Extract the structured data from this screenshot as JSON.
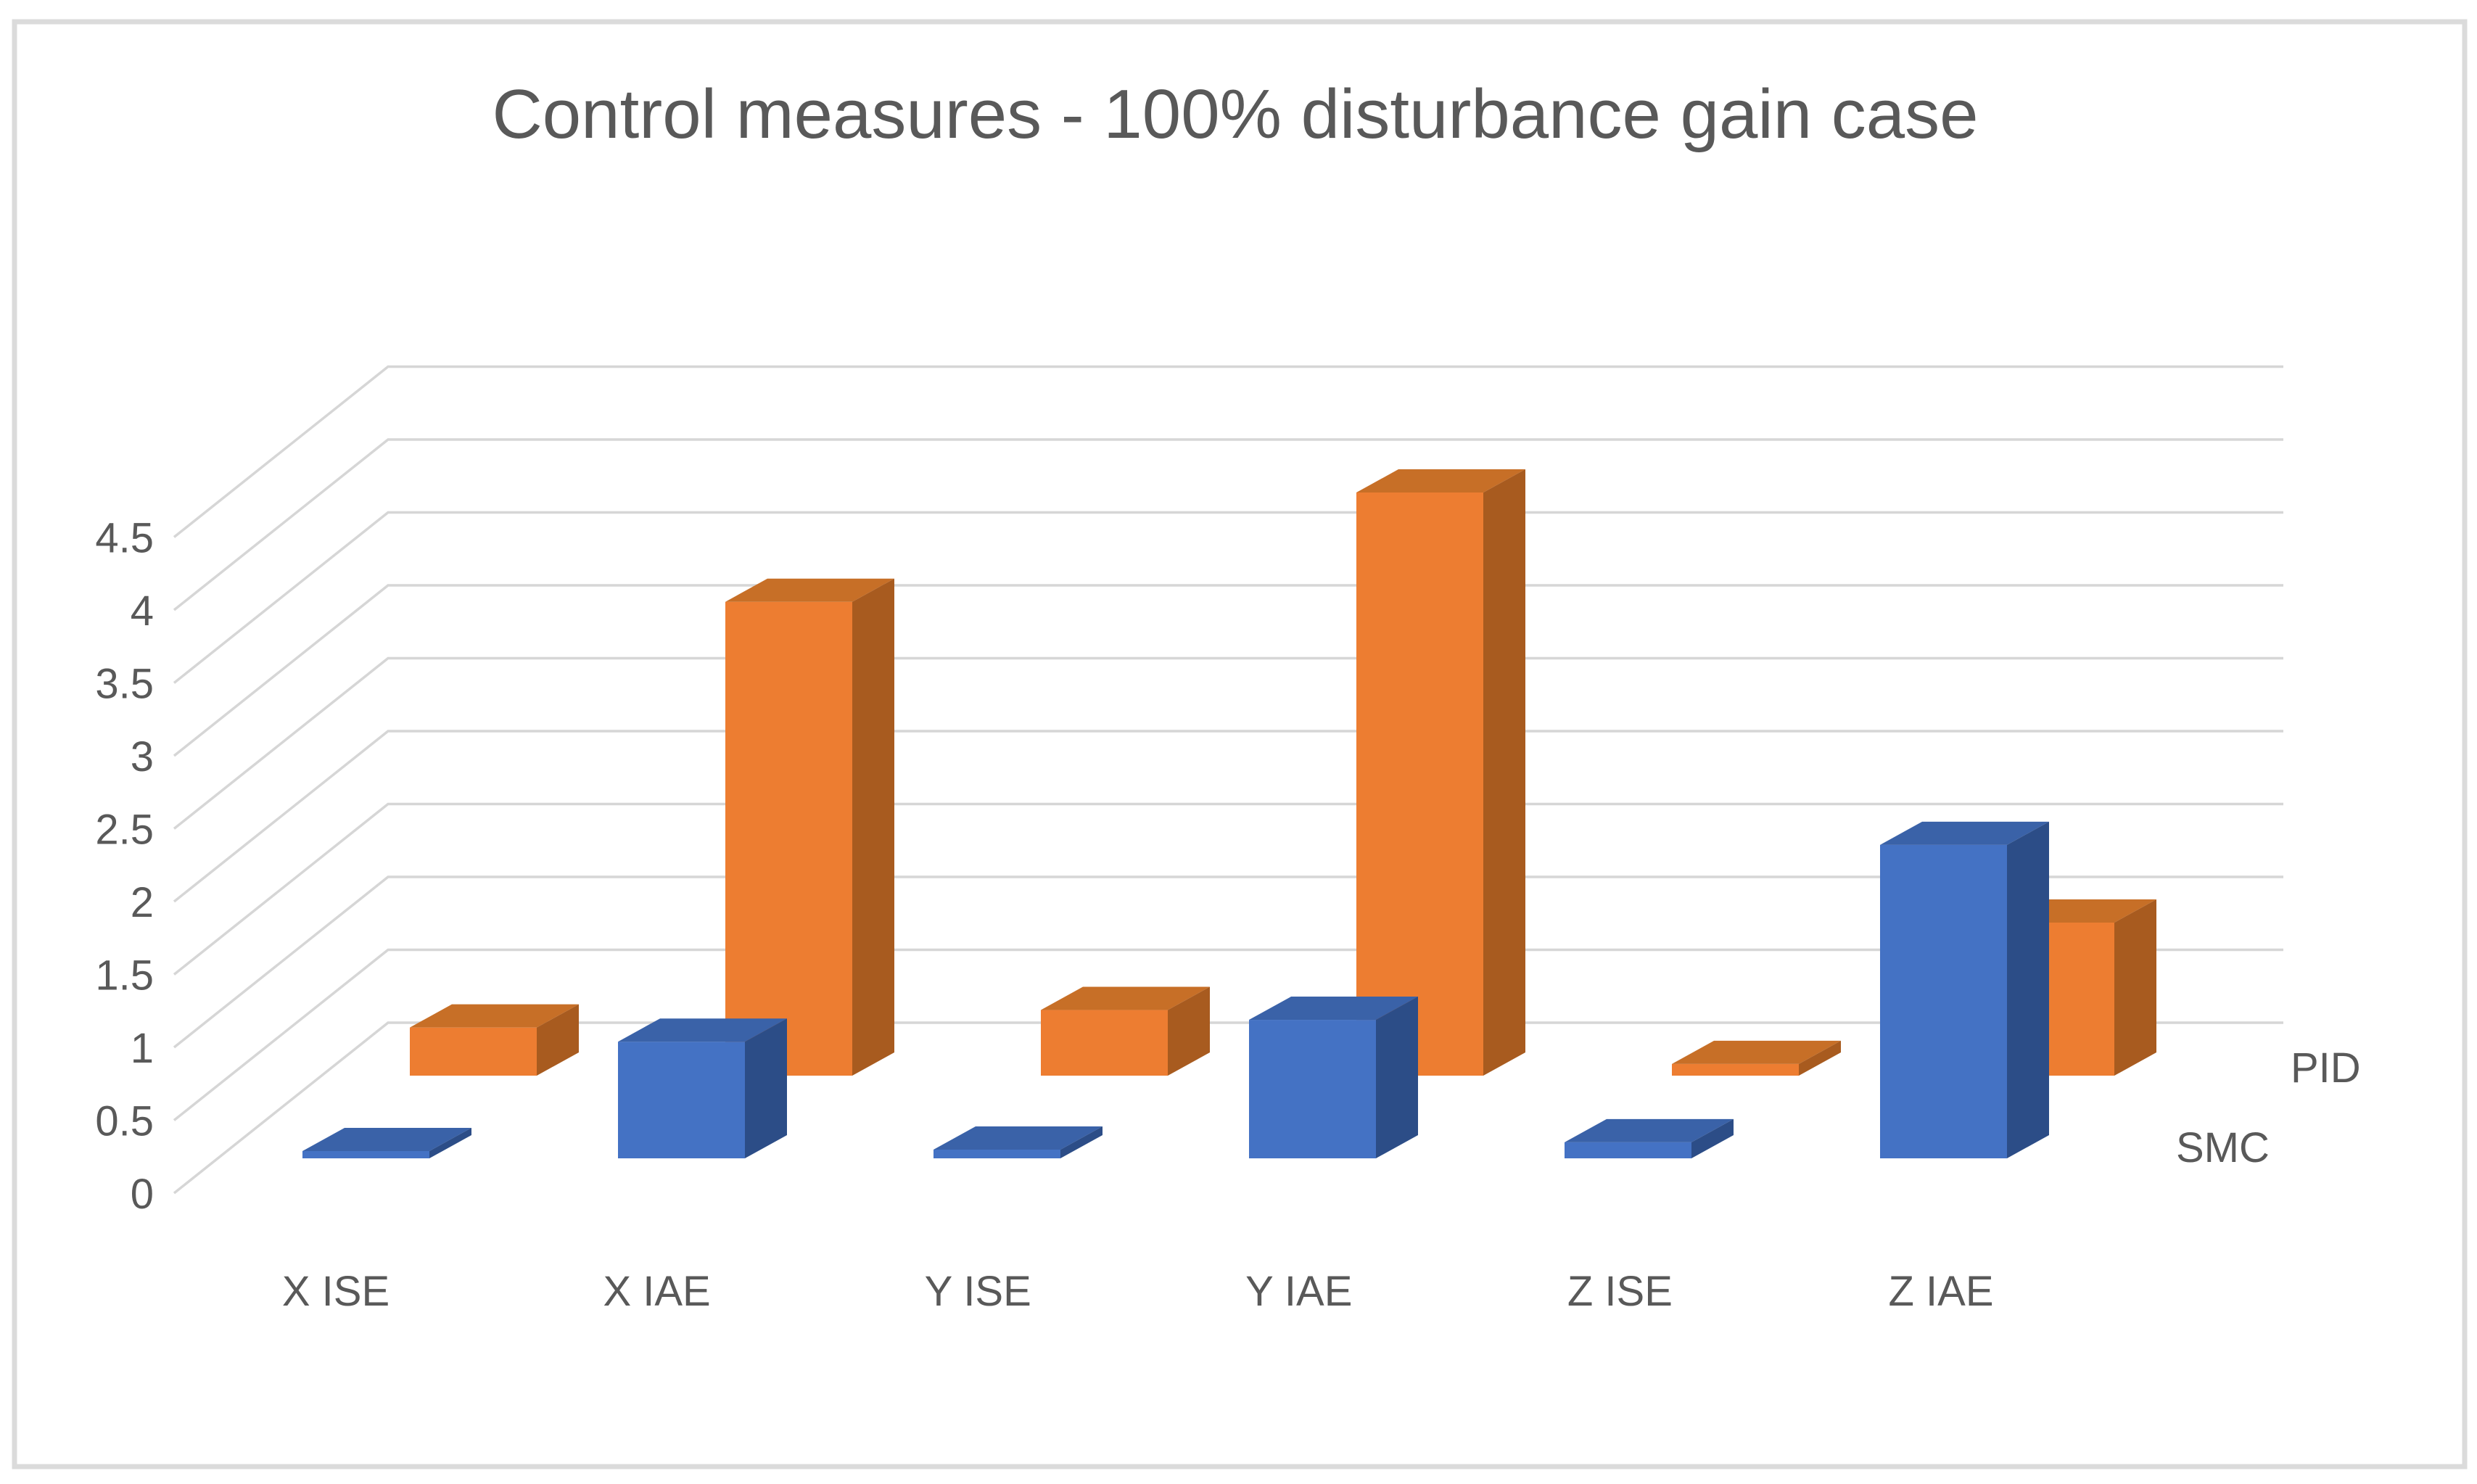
{
  "chart_data": {
    "type": "bar",
    "subtype": "3d-column",
    "title": "Control measures - 100% disturbance gain case",
    "categories": [
      "X ISE",
      "X IAE",
      "Y ISE",
      "Y IAE",
      "Z ISE",
      "Z IAE"
    ],
    "series": [
      {
        "name": "SMC",
        "row": "front",
        "values": [
          0.05,
          0.8,
          0.06,
          0.95,
          0.11,
          2.15
        ],
        "colors": {
          "front": "#4472C4",
          "top": "#3A62A8",
          "side": "#2C4D87"
        }
      },
      {
        "name": "PID",
        "row": "back",
        "values": [
          0.33,
          3.25,
          0.45,
          4.0,
          0.08,
          1.05
        ],
        "colors": {
          "front": "#ED7D31",
          "top": "#C76F27",
          "side": "#A85B1F"
        }
      }
    ],
    "xlabel": "",
    "ylabel": "",
    "ylim": [
      0,
      4.5
    ],
    "ytick_step": 0.5,
    "yticks": [
      0,
      0.5,
      1,
      1.5,
      2,
      2.5,
      3,
      3.5,
      4,
      4.5
    ],
    "grid": true,
    "legend_position": "series-depth-axis-right",
    "series_axis_labels": [
      "PID",
      "SMC"
    ],
    "text_color": "#595959",
    "gridline_color": "#D6D6D6",
    "border_color": "#DBDBDB",
    "background_color": "#FFFFFF"
  }
}
